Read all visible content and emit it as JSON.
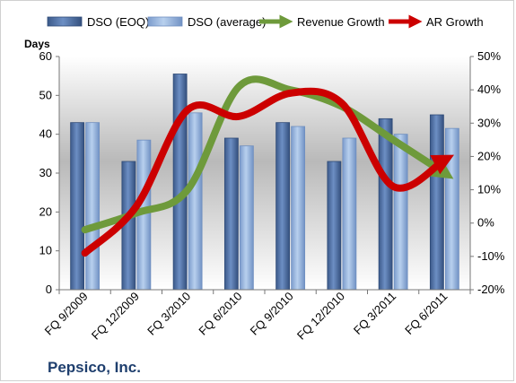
{
  "chart_data": {
    "type": "bar",
    "company": "Pepsico, Inc.",
    "y_left_label": "Days",
    "categories": [
      "FQ 9/2009",
      "FQ 12/2009",
      "FQ 3/2010",
      "FQ 6/2010",
      "FQ 9/2010",
      "FQ 12/2010",
      "FQ 3/2011",
      "FQ 6/2011"
    ],
    "ylim_left": [
      0,
      60
    ],
    "yticks_left": [
      0,
      10,
      20,
      30,
      40,
      50,
      60
    ],
    "ylim_right": [
      -0.2,
      0.5
    ],
    "yticks_right_labels": [
      "-20%",
      "-10%",
      "0%",
      "10%",
      "20%",
      "30%",
      "40%",
      "50%"
    ],
    "series": [
      {
        "name": "DSO (EOQ)",
        "type": "bar",
        "axis": "left",
        "color": "#4a6fa5",
        "values": [
          43,
          33,
          55.5,
          39,
          43,
          33,
          44,
          45
        ]
      },
      {
        "name": "DSO (average)",
        "type": "bar",
        "axis": "left",
        "color": "#8fb0dc",
        "values": [
          43,
          38.5,
          45.5,
          37,
          42,
          39,
          40,
          41.5
        ]
      },
      {
        "name": "Revenue Growth",
        "type": "line",
        "axis": "right",
        "color": "#6e9a3b",
        "values": [
          -0.02,
          0.03,
          0.1,
          0.41,
          0.4,
          0.35,
          0.25,
          0.15
        ]
      },
      {
        "name": "AR Growth",
        "type": "line",
        "axis": "right",
        "color": "#cc0000",
        "values": [
          -0.09,
          0.05,
          0.34,
          0.32,
          0.39,
          0.36,
          0.11,
          0.19
        ]
      }
    ],
    "legend_position": "top",
    "grid": false
  }
}
